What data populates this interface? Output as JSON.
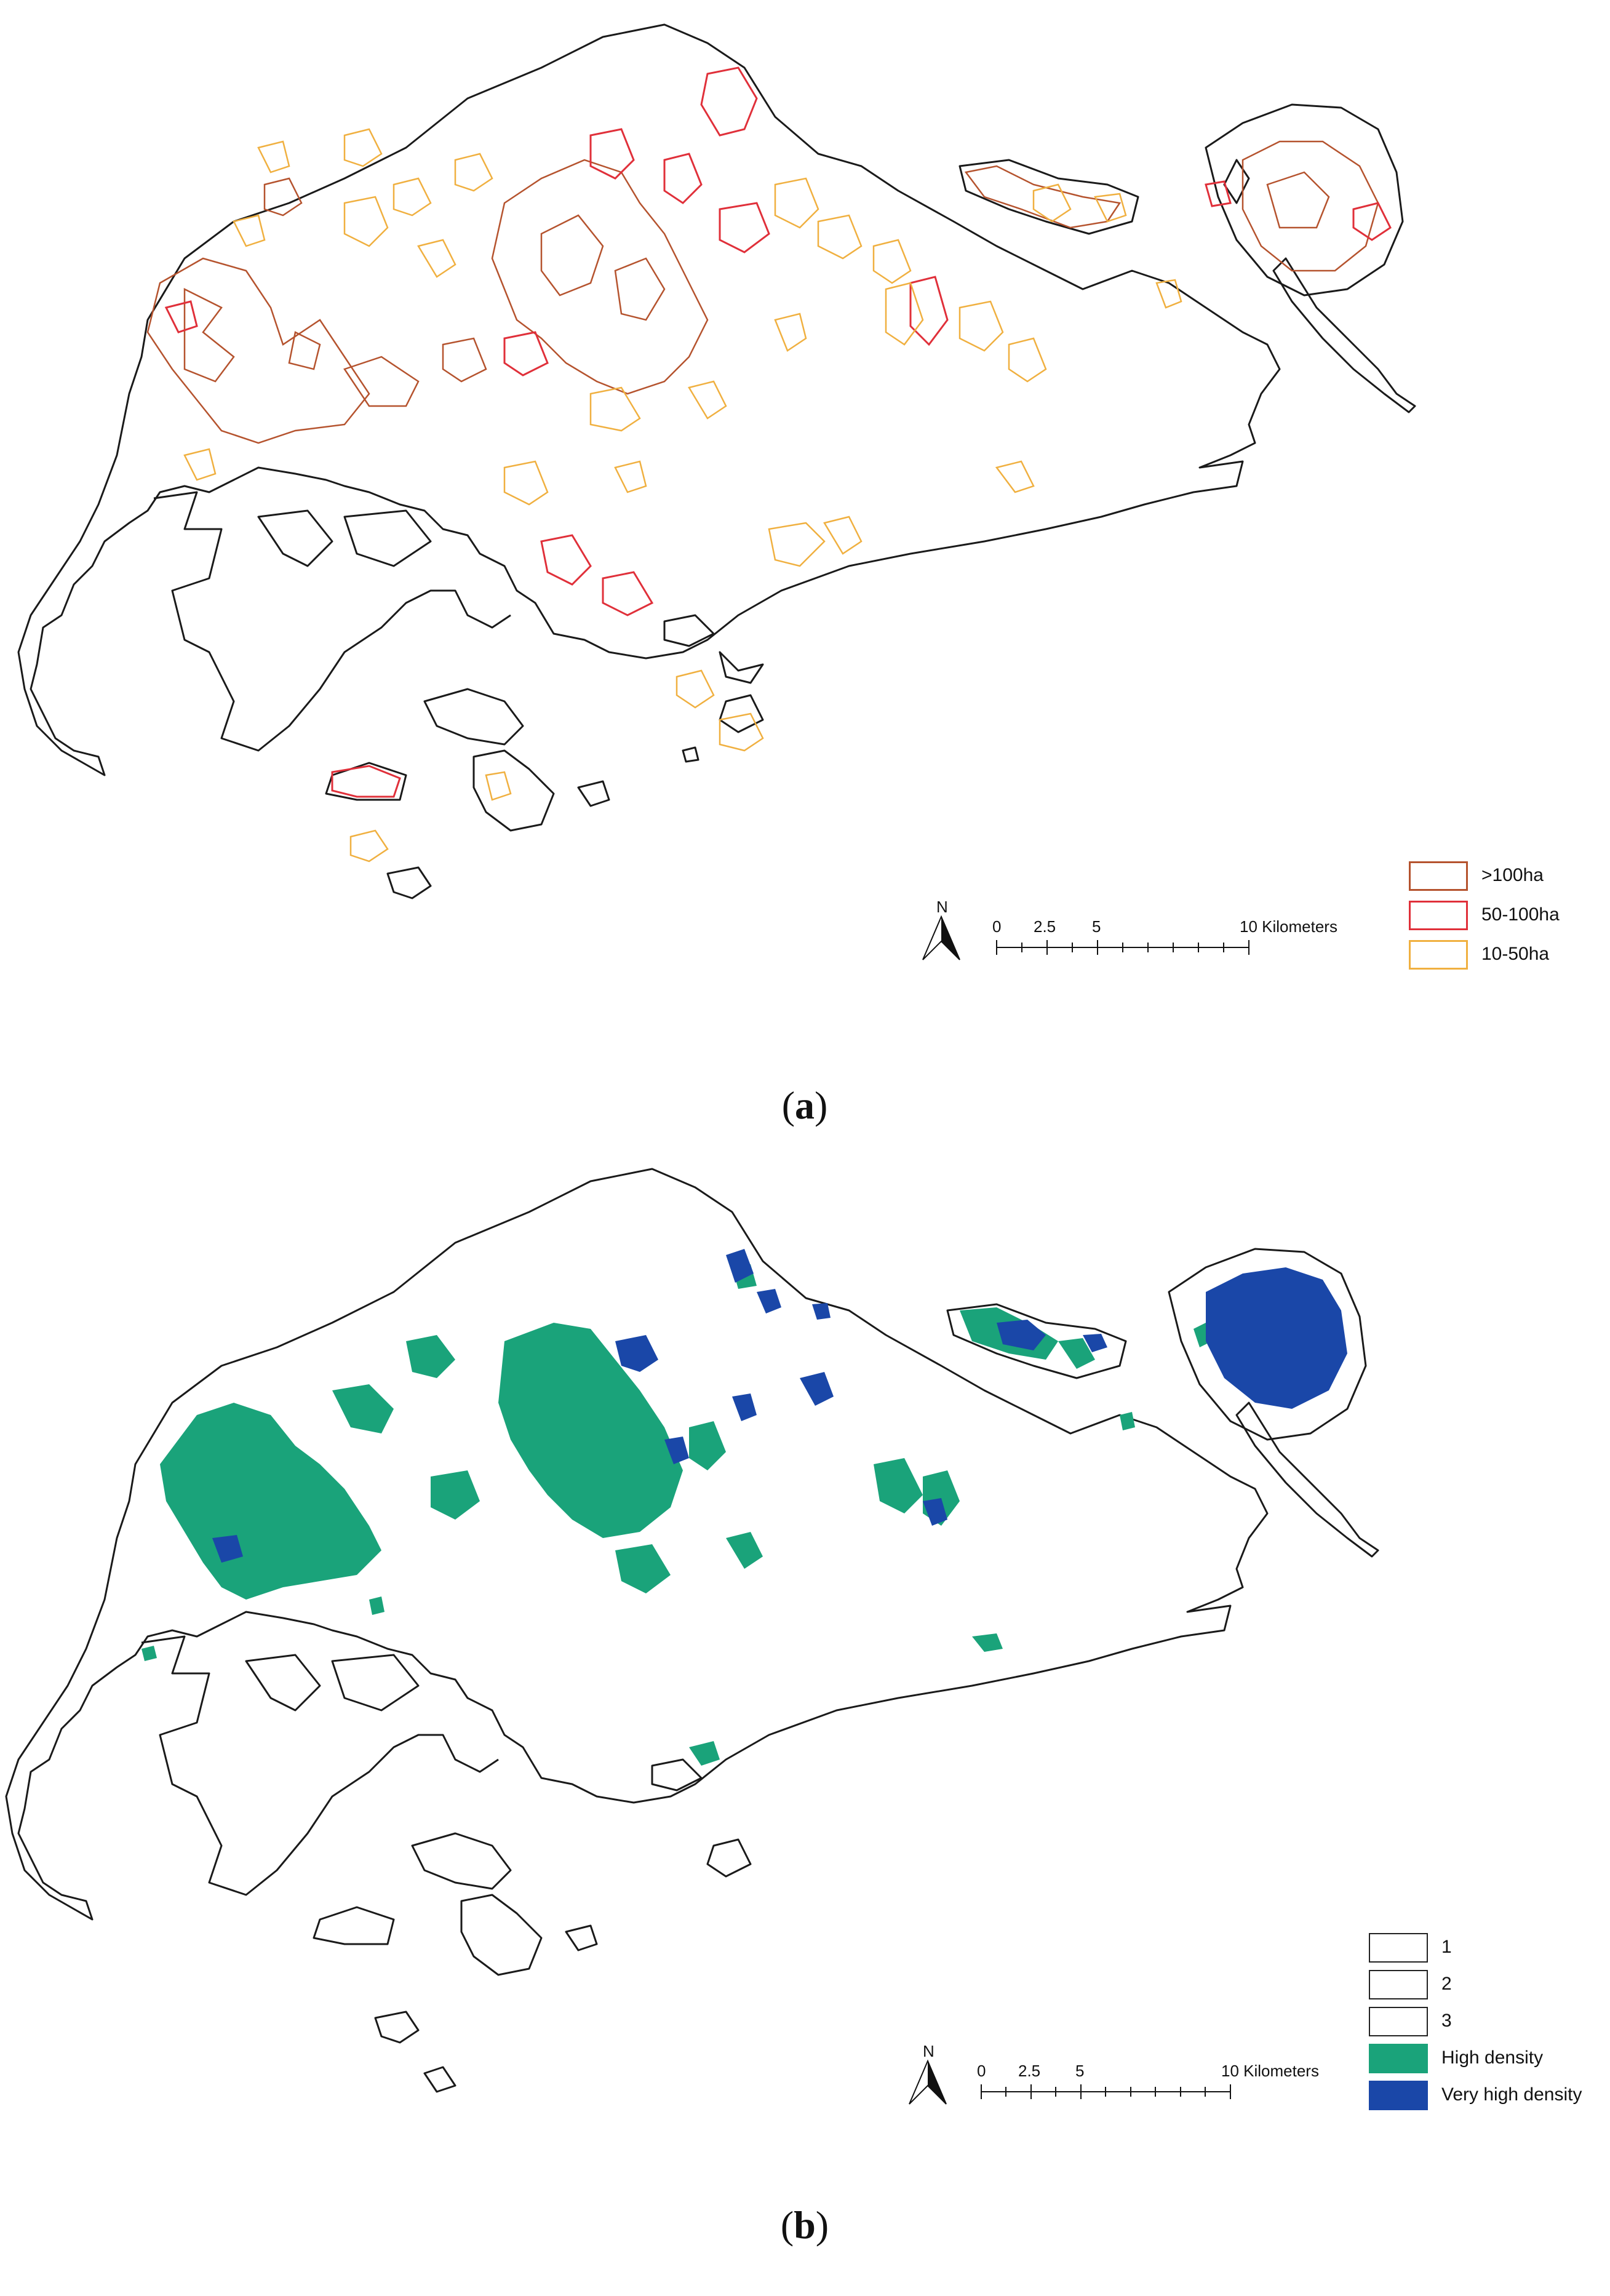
{
  "panels": [
    {
      "id": "a",
      "caption_open": "(",
      "caption_letter": "a",
      "caption_close": ")",
      "north_label": "N",
      "scale_ticks": [
        "0",
        "2.5",
        "5",
        "10 Kilometers"
      ],
      "legend": [
        {
          "label": ">100ha",
          "border": "#b5532e",
          "fill": "#ffffff"
        },
        {
          "label": "50-100ha",
          "border": "#e0303a",
          "fill": "#ffffff"
        },
        {
          "label": "10-50ha",
          "border": "#f0b040",
          "fill": "#ffffff"
        }
      ]
    },
    {
      "id": "b",
      "caption_open": "(",
      "caption_letter": "b",
      "caption_close": ")",
      "north_label": "N",
      "scale_ticks": [
        "0",
        "2.5",
        "5",
        "10 Kilometers"
      ],
      "legend": [
        {
          "label": "1",
          "border": "#222222",
          "fill": "#ffffff"
        },
        {
          "label": "2",
          "border": "#222222",
          "fill": "#ffffff"
        },
        {
          "label": "3",
          "border": "#222222",
          "fill": "#ffffff"
        },
        {
          "label": "High density",
          "border": "#1aa37a",
          "fill": "#1aa37a"
        },
        {
          "label": "Very high density",
          "border": "#1a47a8",
          "fill": "#1a47a8"
        }
      ]
    }
  ],
  "colors": {
    "coastline": "#1a1a1a",
    "patch_gt100": "#b5532e",
    "patch_50_100": "#e0303a",
    "patch_10_50": "#f0b040",
    "high_density": "#1aa37a",
    "very_high_density": "#1a47a8"
  }
}
